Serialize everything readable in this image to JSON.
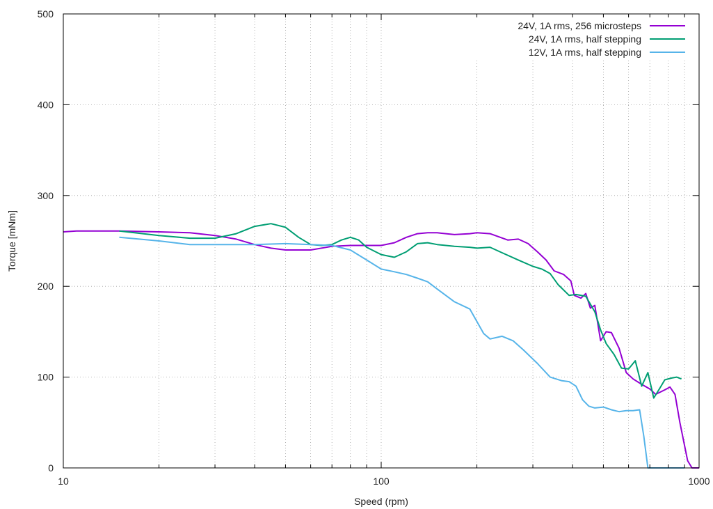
{
  "chart_data": {
    "type": "line",
    "title": "",
    "xlabel": "Speed (rpm)",
    "ylabel": "Torque [mNm]",
    "xscale": "log",
    "xlim": [
      10,
      1000
    ],
    "ylim": [
      0,
      500
    ],
    "x_ticks": [
      10,
      100,
      1000
    ],
    "x_tick_labels": [
      "10",
      "100",
      "1000"
    ],
    "y_ticks": [
      0,
      100,
      200,
      300,
      400,
      500
    ],
    "y_tick_labels": [
      "0",
      "100",
      "200",
      "300",
      "400",
      "500"
    ],
    "grid": true,
    "legend_position": "top-right",
    "series": [
      {
        "name": "24V, 1A rms, 256 microsteps",
        "color": "#9400d3",
        "points": [
          [
            10,
            260
          ],
          [
            11,
            261
          ],
          [
            15,
            261
          ],
          [
            20,
            260
          ],
          [
            25,
            259
          ],
          [
            30,
            256
          ],
          [
            35,
            252
          ],
          [
            40,
            246
          ],
          [
            45,
            242
          ],
          [
            50,
            240
          ],
          [
            60,
            240
          ],
          [
            70,
            244
          ],
          [
            80,
            245
          ],
          [
            90,
            245
          ],
          [
            100,
            245
          ],
          [
            110,
            248
          ],
          [
            120,
            254
          ],
          [
            130,
            258
          ],
          [
            140,
            259
          ],
          [
            150,
            259
          ],
          [
            170,
            257
          ],
          [
            190,
            258
          ],
          [
            200,
            259
          ],
          [
            220,
            258
          ],
          [
            250,
            251
          ],
          [
            270,
            252
          ],
          [
            290,
            247
          ],
          [
            310,
            238
          ],
          [
            330,
            229
          ],
          [
            350,
            217
          ],
          [
            375,
            213
          ],
          [
            395,
            206
          ],
          [
            405,
            190
          ],
          [
            425,
            187
          ],
          [
            440,
            192
          ],
          [
            455,
            176
          ],
          [
            470,
            179
          ],
          [
            490,
            140
          ],
          [
            510,
            150
          ],
          [
            530,
            149
          ],
          [
            560,
            132
          ],
          [
            590,
            105
          ],
          [
            620,
            98
          ],
          [
            660,
            92
          ],
          [
            700,
            87
          ],
          [
            730,
            81
          ],
          [
            780,
            86
          ],
          [
            810,
            89
          ],
          [
            840,
            81
          ],
          [
            870,
            50
          ],
          [
            920,
            8
          ],
          [
            950,
            0
          ],
          [
            1000,
            0
          ]
        ]
      },
      {
        "name": "24V, 1A rms, half stepping",
        "color": "#009e73",
        "points": [
          [
            15,
            261
          ],
          [
            20,
            256
          ],
          [
            25,
            253
          ],
          [
            30,
            253
          ],
          [
            35,
            258
          ],
          [
            40,
            266
          ],
          [
            45,
            269
          ],
          [
            50,
            265
          ],
          [
            55,
            254
          ],
          [
            60,
            246
          ],
          [
            65,
            245
          ],
          [
            70,
            246
          ],
          [
            75,
            251
          ],
          [
            80,
            254
          ],
          [
            85,
            251
          ],
          [
            90,
            243
          ],
          [
            100,
            235
          ],
          [
            110,
            232
          ],
          [
            120,
            238
          ],
          [
            130,
            247
          ],
          [
            140,
            248
          ],
          [
            150,
            246
          ],
          [
            170,
            244
          ],
          [
            190,
            243
          ],
          [
            200,
            242
          ],
          [
            220,
            243
          ],
          [
            240,
            237
          ],
          [
            270,
            229
          ],
          [
            300,
            222
          ],
          [
            320,
            219
          ],
          [
            340,
            214
          ],
          [
            360,
            202
          ],
          [
            390,
            190
          ],
          [
            410,
            191
          ],
          [
            440,
            189
          ],
          [
            470,
            172
          ],
          [
            490,
            152
          ],
          [
            510,
            137
          ],
          [
            540,
            125
          ],
          [
            570,
            110
          ],
          [
            600,
            109
          ],
          [
            630,
            118
          ],
          [
            660,
            90
          ],
          [
            690,
            105
          ],
          [
            720,
            77
          ],
          [
            750,
            87
          ],
          [
            780,
            97
          ],
          [
            820,
            99
          ],
          [
            850,
            100
          ],
          [
            880,
            98
          ]
        ]
      },
      {
        "name": "12V, 1A rms, half stepping",
        "color": "#56b4e9",
        "points": [
          [
            15,
            254
          ],
          [
            20,
            250
          ],
          [
            25,
            246
          ],
          [
            30,
            246
          ],
          [
            40,
            246
          ],
          [
            50,
            247
          ],
          [
            60,
            246
          ],
          [
            70,
            245
          ],
          [
            80,
            240
          ],
          [
            90,
            229
          ],
          [
            100,
            219
          ],
          [
            110,
            216
          ],
          [
            120,
            213
          ],
          [
            130,
            209
          ],
          [
            140,
            205
          ],
          [
            150,
            197
          ],
          [
            170,
            183
          ],
          [
            190,
            175
          ],
          [
            210,
            148
          ],
          [
            220,
            142
          ],
          [
            240,
            145
          ],
          [
            260,
            140
          ],
          [
            280,
            130
          ],
          [
            310,
            115
          ],
          [
            340,
            100
          ],
          [
            370,
            96
          ],
          [
            390,
            95
          ],
          [
            410,
            90
          ],
          [
            430,
            75
          ],
          [
            450,
            68
          ],
          [
            470,
            66
          ],
          [
            500,
            67
          ],
          [
            530,
            64
          ],
          [
            560,
            62
          ],
          [
            590,
            63
          ],
          [
            620,
            63
          ],
          [
            650,
            64
          ],
          [
            670,
            35
          ],
          [
            690,
            0
          ],
          [
            760,
            0
          ],
          [
            800,
            0
          ],
          [
            850,
            0
          ],
          [
            900,
            0
          ]
        ]
      }
    ]
  }
}
